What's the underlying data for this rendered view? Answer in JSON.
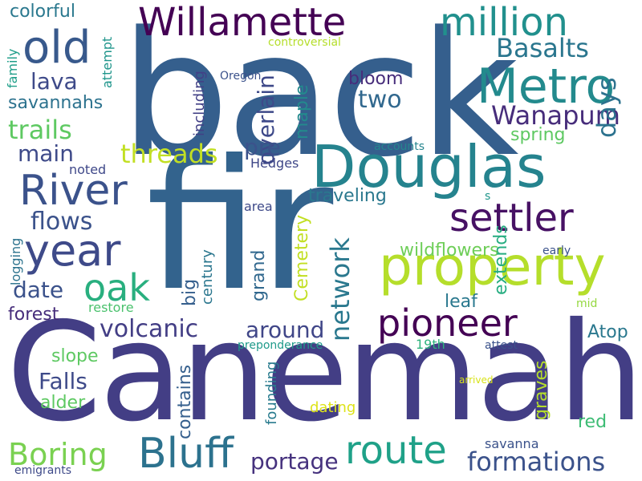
{
  "words": [
    {
      "text": "back",
      "color": "#355f8d"
    },
    {
      "text": "fir",
      "color": "#33638d"
    },
    {
      "text": "Canemah",
      "color": "#433e85"
    },
    {
      "text": "Douglas",
      "color": "#25838e"
    },
    {
      "text": "property",
      "color": "#b5de2b"
    },
    {
      "text": "Metro",
      "color": "#238a8d"
    },
    {
      "text": "Willamette",
      "color": "#440154"
    },
    {
      "text": "million",
      "color": "#21908d"
    },
    {
      "text": "settler",
      "color": "#471164"
    },
    {
      "text": "pioneer",
      "color": "#440154"
    },
    {
      "text": "River",
      "color": "#3b528b"
    },
    {
      "text": "year",
      "color": "#3e4a89"
    },
    {
      "text": "old",
      "color": "#38598c"
    },
    {
      "text": "route",
      "color": "#1fa188"
    },
    {
      "text": "Bluff",
      "color": "#2c728e"
    },
    {
      "text": "oak",
      "color": "#29af7f"
    },
    {
      "text": "formations",
      "color": "#3b528b"
    },
    {
      "text": "Boring",
      "color": "#7ad151"
    },
    {
      "text": "network",
      "color": "#2a788e"
    },
    {
      "text": "threads",
      "color": "#c2df23"
    },
    {
      "text": "Wanapum",
      "color": "#472d7b"
    },
    {
      "text": "Basalts",
      "color": "#2a768e"
    },
    {
      "text": "trails",
      "color": "#5ec962"
    },
    {
      "text": "volcanic",
      "color": "#433e85"
    },
    {
      "text": "overlain",
      "color": "#3e4989"
    },
    {
      "text": "days",
      "color": "#2c728e"
    },
    {
      "text": "flows",
      "color": "#3b528b"
    },
    {
      "text": "two",
      "color": "#31688e"
    },
    {
      "text": "portage",
      "color": "#46327e"
    },
    {
      "text": "lava",
      "color": "#3e4a89"
    },
    {
      "text": "date",
      "color": "#3b528b"
    },
    {
      "text": "main",
      "color": "#3e4a89"
    },
    {
      "text": "pre",
      "color": "#3b528b"
    },
    {
      "text": "around",
      "color": "#404688"
    },
    {
      "text": "Falls",
      "color": "#3e4a89"
    },
    {
      "text": "wildflowers",
      "color": "#6ece58"
    },
    {
      "text": "contains",
      "color": "#355f8d"
    },
    {
      "text": "traveling",
      "color": "#2a788e"
    },
    {
      "text": "grand",
      "color": "#31688e"
    },
    {
      "text": "extends",
      "color": "#27ad81"
    },
    {
      "text": "Cemetery",
      "color": "#c2df23"
    },
    {
      "text": "Atop",
      "color": "#2a788e"
    },
    {
      "text": "spring",
      "color": "#5ec962"
    },
    {
      "text": "bloom",
      "color": "#472d7b"
    },
    {
      "text": "leaf",
      "color": "#2a788e"
    },
    {
      "text": "graves",
      "color": "#b5de2b"
    },
    {
      "text": "alder",
      "color": "#5ec962"
    },
    {
      "text": "slope",
      "color": "#5ec962"
    },
    {
      "text": "forest",
      "color": "#472d7b"
    },
    {
      "text": "savannahs",
      "color": "#2c728e"
    },
    {
      "text": "colorful",
      "color": "#2a788e"
    },
    {
      "text": "red",
      "color": "#3dbc74"
    },
    {
      "text": "big",
      "color": "#355f8d"
    },
    {
      "text": "maple",
      "color": "#238a8d"
    },
    {
      "text": "including",
      "color": "#424086"
    },
    {
      "text": "founding",
      "color": "#297b8e"
    },
    {
      "text": "century",
      "color": "#2a768e"
    },
    {
      "text": "dating",
      "color": "#dde318"
    },
    {
      "text": "Hedges",
      "color": "#3f4788"
    },
    {
      "text": "area",
      "color": "#3e4a89"
    },
    {
      "text": "restore",
      "color": "#4ac16d"
    },
    {
      "text": "noted",
      "color": "#3f4889"
    },
    {
      "text": "19th",
      "color": "#2db27d"
    },
    {
      "text": "savanna",
      "color": "#3b528b"
    },
    {
      "text": "logging",
      "color": "#2c738e"
    },
    {
      "text": "attempt",
      "color": "#1f958b"
    },
    {
      "text": "family",
      "color": "#1f9e89"
    },
    {
      "text": "controversial",
      "color": "#b5de2b"
    },
    {
      "text": "Oregon",
      "color": "#3b528b"
    },
    {
      "text": "accounts",
      "color": "#25858e"
    },
    {
      "text": "early",
      "color": "#3b528b"
    },
    {
      "text": "mid",
      "color": "#95d840"
    },
    {
      "text": "attest",
      "color": "#3b528b"
    },
    {
      "text": "preponderance",
      "color": "#1f9a8a"
    },
    {
      "text": "arrived",
      "color": "#d8e219"
    },
    {
      "text": "emigrants",
      "color": "#3e4a89"
    },
    {
      "text": "s",
      "color": "#1f968b"
    }
  ]
}
